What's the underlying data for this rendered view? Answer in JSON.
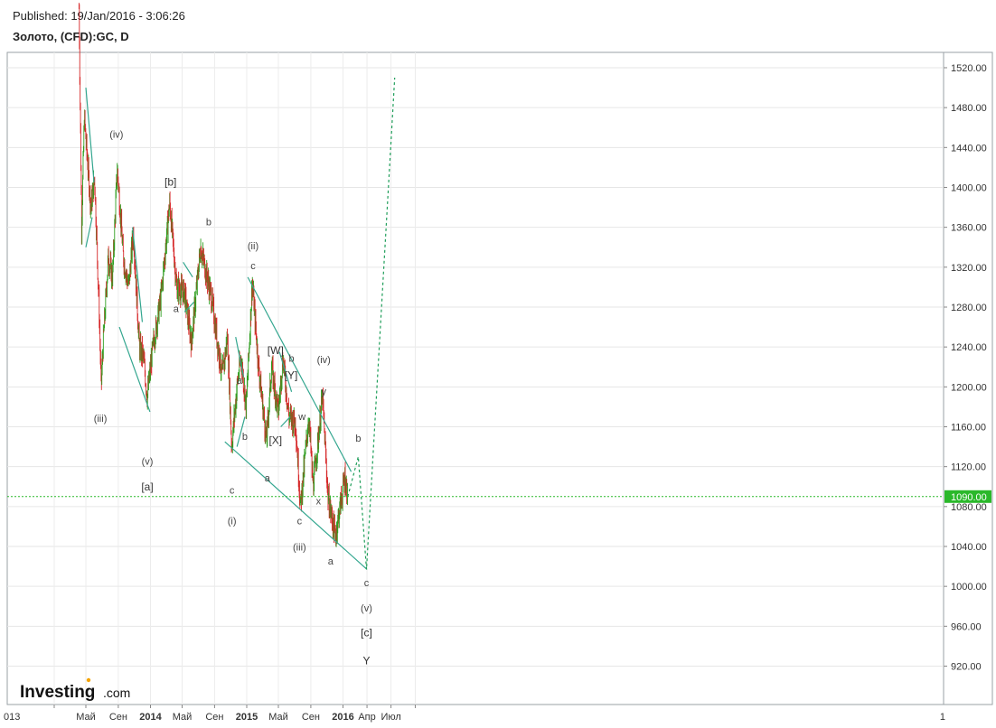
{
  "header": {
    "published": "Published: 19/Jan/2016 - 3:06:26",
    "symbol": "Золото, (CFD):GC, D"
  },
  "logo": {
    "name": "Investing",
    "suffix": ".com"
  },
  "colors": {
    "up": "#2e9e1f",
    "down": "#d62728",
    "trendline": "#33a68f",
    "projection": "#1f9e5a",
    "current_price_line": "#2ab82a",
    "current_price_badge": "#2ab82a"
  },
  "chart_data": {
    "type": "candlestick",
    "title": "Золото, (CFD):GC, D",
    "current_price": {
      "value": 1090,
      "label": "1090.00"
    },
    "ylim": [
      890,
      1535
    ],
    "y_ticks": [
      "1520.00",
      "1480.00",
      "1440.00",
      "1400.00",
      "1360.00",
      "1320.00",
      "1280.00",
      "1240.00",
      "1200.00",
      "1160.00",
      "1120.00",
      "1080.00",
      "1040.00",
      "1000.00",
      "960.00",
      "920.00"
    ],
    "x_ticks": [
      "013",
      "Май",
      "Сен",
      "2014",
      "Май",
      "Сен",
      "2015",
      "Май",
      "Сен",
      "2016",
      "Апр",
      "Июл",
      "1"
    ],
    "price_path": [
      {
        "date": "2013-04-05",
        "value": 1580
      },
      {
        "date": "2013-04-15",
        "value": 1360
      },
      {
        "date": "2013-04-25",
        "value": 1470
      },
      {
        "date": "2013-05-20",
        "value": 1380
      },
      {
        "date": "2013-06-03",
        "value": 1410
      },
      {
        "date": "2013-06-20",
        "value": 1280
      },
      {
        "date": "2013-06-28",
        "value": 1200
      },
      {
        "date": "2013-07-05",
        "value": 1240
      },
      {
        "date": "2013-07-25",
        "value": 1330
      },
      {
        "date": "2013-08-10",
        "value": 1310
      },
      {
        "date": "2013-08-28",
        "value": 1420
      },
      {
        "date": "2013-09-20",
        "value": 1330
      },
      {
        "date": "2013-10-10",
        "value": 1300
      },
      {
        "date": "2013-10-28",
        "value": 1355
      },
      {
        "date": "2013-11-20",
        "value": 1240
      },
      {
        "date": "2013-12-05",
        "value": 1230
      },
      {
        "date": "2013-12-20",
        "value": 1190
      },
      {
        "date": "2014-01-10",
        "value": 1240
      },
      {
        "date": "2014-02-10",
        "value": 1290
      },
      {
        "date": "2014-03-15",
        "value": 1385
      },
      {
        "date": "2014-04-10",
        "value": 1300
      },
      {
        "date": "2014-05-10",
        "value": 1295
      },
      {
        "date": "2014-06-05",
        "value": 1245
      },
      {
        "date": "2014-07-10",
        "value": 1340
      },
      {
        "date": "2014-08-20",
        "value": 1290
      },
      {
        "date": "2014-09-30",
        "value": 1210
      },
      {
        "date": "2014-10-20",
        "value": 1250
      },
      {
        "date": "2014-11-05",
        "value": 1140
      },
      {
        "date": "2014-11-25",
        "value": 1200
      },
      {
        "date": "2014-12-10",
        "value": 1230
      },
      {
        "date": "2014-12-30",
        "value": 1180
      },
      {
        "date": "2015-01-22",
        "value": 1305
      },
      {
        "date": "2015-02-15",
        "value": 1220
      },
      {
        "date": "2015-03-17",
        "value": 1145
      },
      {
        "date": "2015-04-05",
        "value": 1220
      },
      {
        "date": "2015-05-01",
        "value": 1175
      },
      {
        "date": "2015-05-18",
        "value": 1230
      },
      {
        "date": "2015-06-10",
        "value": 1170
      },
      {
        "date": "2015-07-05",
        "value": 1165
      },
      {
        "date": "2015-07-24",
        "value": 1080
      },
      {
        "date": "2015-08-24",
        "value": 1170
      },
      {
        "date": "2015-09-10",
        "value": 1100
      },
      {
        "date": "2015-10-15",
        "value": 1190
      },
      {
        "date": "2015-11-05",
        "value": 1090
      },
      {
        "date": "2015-12-03",
        "value": 1050
      },
      {
        "date": "2016-01-08",
        "value": 1110
      },
      {
        "date": "2016-01-19",
        "value": 1090
      }
    ],
    "projection": [
      {
        "date": "2016-01-19",
        "value": 1090
      },
      {
        "date": "2016-02-28",
        "value": 1130
      },
      {
        "date": "2016-03-30",
        "value": 1017
      },
      {
        "date": "2016-07-15",
        "value": 1510
      }
    ],
    "trendlines": [
      {
        "from": {
          "date": "2013-05-01",
          "value": 1500
        },
        "to": {
          "date": "2013-06-01",
          "value": 1405
        }
      },
      {
        "from": {
          "date": "2013-05-01",
          "value": 1340
        },
        "to": {
          "date": "2013-05-25",
          "value": 1370
        }
      },
      {
        "from": {
          "date": "2013-10-25",
          "value": 1360
        },
        "to": {
          "date": "2013-12-01",
          "value": 1265
        }
      },
      {
        "from": {
          "date": "2013-09-05",
          "value": 1260
        },
        "to": {
          "date": "2013-12-30",
          "value": 1175
        }
      },
      {
        "from": {
          "date": "2014-05-05",
          "value": 1325
        },
        "to": {
          "date": "2014-06-10",
          "value": 1310
        }
      },
      {
        "from": {
          "date": "2014-05-10",
          "value": 1275
        },
        "to": {
          "date": "2014-06-15",
          "value": 1285
        }
      },
      {
        "from": {
          "date": "2014-11-20",
          "value": 1250
        },
        "to": {
          "date": "2014-12-20",
          "value": 1210
        }
      },
      {
        "from": {
          "date": "2014-11-25",
          "value": 1140
        },
        "to": {
          "date": "2014-12-25",
          "value": 1170
        }
      },
      {
        "from": {
          "date": "2015-01-05",
          "value": 1310
        },
        "to": {
          "date": "2016-02-01",
          "value": 1115
        }
      },
      {
        "from": {
          "date": "2015-05-05",
          "value": 1235
        },
        "to": {
          "date": "2015-06-20",
          "value": 1195
        }
      },
      {
        "from": {
          "date": "2015-05-10",
          "value": 1160
        },
        "to": {
          "date": "2015-06-15",
          "value": 1170
        }
      },
      {
        "from": {
          "date": "2014-10-10",
          "value": 1145
        },
        "to": {
          "date": "2016-04-01",
          "value": 1017
        }
      }
    ],
    "annotations": [
      {
        "text": "(iv)",
        "date": "2013-08-25",
        "value": 1450
      },
      {
        "text": "(iii)",
        "date": "2013-06-25",
        "value": 1165
      },
      {
        "text": "(v)",
        "date": "2013-12-20",
        "value": 1122
      },
      {
        "text": "[a]",
        "date": "2013-12-20",
        "value": 1096
      },
      {
        "text": "[b]",
        "date": "2014-03-18",
        "value": 1402
      },
      {
        "text": "a",
        "date": "2014-04-08",
        "value": 1275
      },
      {
        "text": "b",
        "date": "2014-08-10",
        "value": 1362
      },
      {
        "text": "(ii)",
        "date": "2015-01-25",
        "value": 1338
      },
      {
        "text": "c",
        "date": "2015-01-25",
        "value": 1318
      },
      {
        "text": "c",
        "date": "2014-11-06",
        "value": 1093
      },
      {
        "text": "(i)",
        "date": "2014-11-06",
        "value": 1062
      },
      {
        "text": "a",
        "date": "2014-12-05",
        "value": 1203
      },
      {
        "text": "b",
        "date": "2014-12-25",
        "value": 1147
      },
      {
        "text": "a",
        "date": "2015-03-20",
        "value": 1105
      },
      {
        "text": "[W]",
        "date": "2015-04-20",
        "value": 1233
      },
      {
        "text": "b",
        "date": "2015-06-20",
        "value": 1225
      },
      {
        "text": "[Y]",
        "date": "2015-06-18",
        "value": 1208
      },
      {
        "text": "[X]",
        "date": "2015-04-20",
        "value": 1143
      },
      {
        "text": "w",
        "date": "2015-07-30",
        "value": 1167
      },
      {
        "text": "(iv)",
        "date": "2015-10-20",
        "value": 1224
      },
      {
        "text": "y",
        "date": "2015-10-20",
        "value": 1192
      },
      {
        "text": "x",
        "date": "2015-09-30",
        "value": 1082
      },
      {
        "text": "c",
        "date": "2015-07-20",
        "value": 1062
      },
      {
        "text": "(iii)",
        "date": "2015-07-20",
        "value": 1036
      },
      {
        "text": "a",
        "date": "2015-11-15",
        "value": 1022
      },
      {
        "text": "b",
        "date": "2016-02-28",
        "value": 1145
      },
      {
        "text": "c",
        "date": "2016-03-30",
        "value": 1000
      },
      {
        "text": "(v)",
        "date": "2016-03-30",
        "value": 975
      },
      {
        "text": "[c]",
        "date": "2016-03-30",
        "value": 950
      },
      {
        "text": "Y",
        "date": "2016-03-30",
        "value": 922
      }
    ]
  }
}
